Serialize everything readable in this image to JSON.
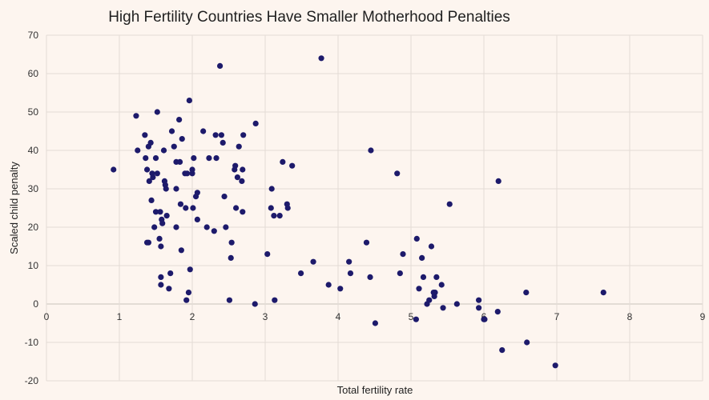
{
  "chart_data": {
    "type": "scatter",
    "title": "High Fertility Countries Have Smaller Motherhood Penalties",
    "xlabel": "Total fertility rate",
    "ylabel": "Scaled child penalty",
    "xlim": [
      0,
      9
    ],
    "ylim": [
      -20,
      70
    ],
    "x_ticks": [
      0,
      1,
      2,
      3,
      4,
      5,
      6,
      7,
      8,
      9
    ],
    "y_ticks": [
      -20,
      -10,
      0,
      10,
      20,
      30,
      40,
      50,
      60,
      70
    ],
    "grid": true,
    "legend": "none",
    "colors": {
      "background": "#fdf5ef",
      "point": "#1d1a6b",
      "grid": "#e3dcd6"
    },
    "series": [
      {
        "name": "Countries",
        "points": [
          [
            0.92,
            35
          ],
          [
            1.23,
            49
          ],
          [
            1.25,
            40
          ],
          [
            1.35,
            44
          ],
          [
            1.36,
            38
          ],
          [
            1.38,
            35
          ],
          [
            1.38,
            16
          ],
          [
            1.4,
            16
          ],
          [
            1.4,
            41
          ],
          [
            1.41,
            32
          ],
          [
            1.43,
            42
          ],
          [
            1.44,
            27
          ],
          [
            1.45,
            34
          ],
          [
            1.46,
            33
          ],
          [
            1.48,
            20
          ],
          [
            1.5,
            38
          ],
          [
            1.5,
            24
          ],
          [
            1.52,
            50
          ],
          [
            1.52,
            34
          ],
          [
            1.55,
            17
          ],
          [
            1.56,
            24
          ],
          [
            1.57,
            15
          ],
          [
            1.57,
            7
          ],
          [
            1.57,
            5
          ],
          [
            1.58,
            22
          ],
          [
            1.59,
            21
          ],
          [
            1.61,
            40
          ],
          [
            1.62,
            32
          ],
          [
            1.63,
            31
          ],
          [
            1.64,
            30
          ],
          [
            1.65,
            23
          ],
          [
            1.68,
            4
          ],
          [
            1.7,
            8
          ],
          [
            1.72,
            45
          ],
          [
            1.75,
            41
          ],
          [
            1.78,
            37
          ],
          [
            1.78,
            30
          ],
          [
            1.78,
            20
          ],
          [
            1.82,
            48
          ],
          [
            1.83,
            37
          ],
          [
            1.84,
            26
          ],
          [
            1.85,
            14
          ],
          [
            1.86,
            43
          ],
          [
            1.9,
            34
          ],
          [
            1.91,
            25
          ],
          [
            1.92,
            1
          ],
          [
            1.93,
            34
          ],
          [
            1.95,
            3
          ],
          [
            1.96,
            53
          ],
          [
            1.97,
            9
          ],
          [
            2.0,
            34
          ],
          [
            2.0,
            35
          ],
          [
            2.01,
            25
          ],
          [
            2.02,
            38
          ],
          [
            2.05,
            28
          ],
          [
            2.07,
            29
          ],
          [
            2.07,
            22
          ],
          [
            2.15,
            45
          ],
          [
            2.2,
            20
          ],
          [
            2.23,
            38
          ],
          [
            2.3,
            19
          ],
          [
            2.32,
            44
          ],
          [
            2.33,
            38
          ],
          [
            2.38,
            62
          ],
          [
            2.4,
            44
          ],
          [
            2.42,
            42
          ],
          [
            2.44,
            28
          ],
          [
            2.46,
            20
          ],
          [
            2.51,
            1
          ],
          [
            2.53,
            12
          ],
          [
            2.54,
            16
          ],
          [
            2.58,
            35
          ],
          [
            2.59,
            36
          ],
          [
            2.6,
            25
          ],
          [
            2.62,
            33
          ],
          [
            2.64,
            41
          ],
          [
            2.68,
            32
          ],
          [
            2.69,
            24
          ],
          [
            2.69,
            35
          ],
          [
            2.7,
            44
          ],
          [
            2.86,
            0
          ],
          [
            2.87,
            47
          ],
          [
            3.03,
            13
          ],
          [
            3.08,
            25
          ],
          [
            3.09,
            30
          ],
          [
            3.12,
            23
          ],
          [
            3.13,
            1
          ],
          [
            3.2,
            23
          ],
          [
            3.24,
            37
          ],
          [
            3.3,
            26
          ],
          [
            3.31,
            25
          ],
          [
            3.37,
            36
          ],
          [
            3.49,
            8
          ],
          [
            3.66,
            11
          ],
          [
            3.77,
            64
          ],
          [
            3.87,
            5
          ],
          [
            4.03,
            4
          ],
          [
            4.15,
            11
          ],
          [
            4.17,
            8
          ],
          [
            4.39,
            16
          ],
          [
            4.44,
            7
          ],
          [
            4.45,
            40
          ],
          [
            4.51,
            -5
          ],
          [
            4.81,
            34
          ],
          [
            4.85,
            8
          ],
          [
            4.89,
            13
          ],
          [
            5.07,
            -4
          ],
          [
            5.08,
            17
          ],
          [
            5.11,
            4
          ],
          [
            5.15,
            12
          ],
          [
            5.17,
            7
          ],
          [
            5.22,
            0
          ],
          [
            5.25,
            1
          ],
          [
            5.28,
            15
          ],
          [
            5.31,
            3
          ],
          [
            5.32,
            2
          ],
          [
            5.33,
            3
          ],
          [
            5.35,
            7
          ],
          [
            5.42,
            5
          ],
          [
            5.44,
            -1
          ],
          [
            5.53,
            26
          ],
          [
            5.63,
            0
          ],
          [
            5.93,
            1
          ],
          [
            5.93,
            -1
          ],
          [
            6.0,
            -4
          ],
          [
            6.01,
            -4
          ],
          [
            6.19,
            -2
          ],
          [
            6.2,
            32
          ],
          [
            6.25,
            -12
          ],
          [
            6.58,
            3
          ],
          [
            6.59,
            -10
          ],
          [
            6.98,
            -16
          ],
          [
            7.64,
            3
          ]
        ]
      }
    ]
  }
}
